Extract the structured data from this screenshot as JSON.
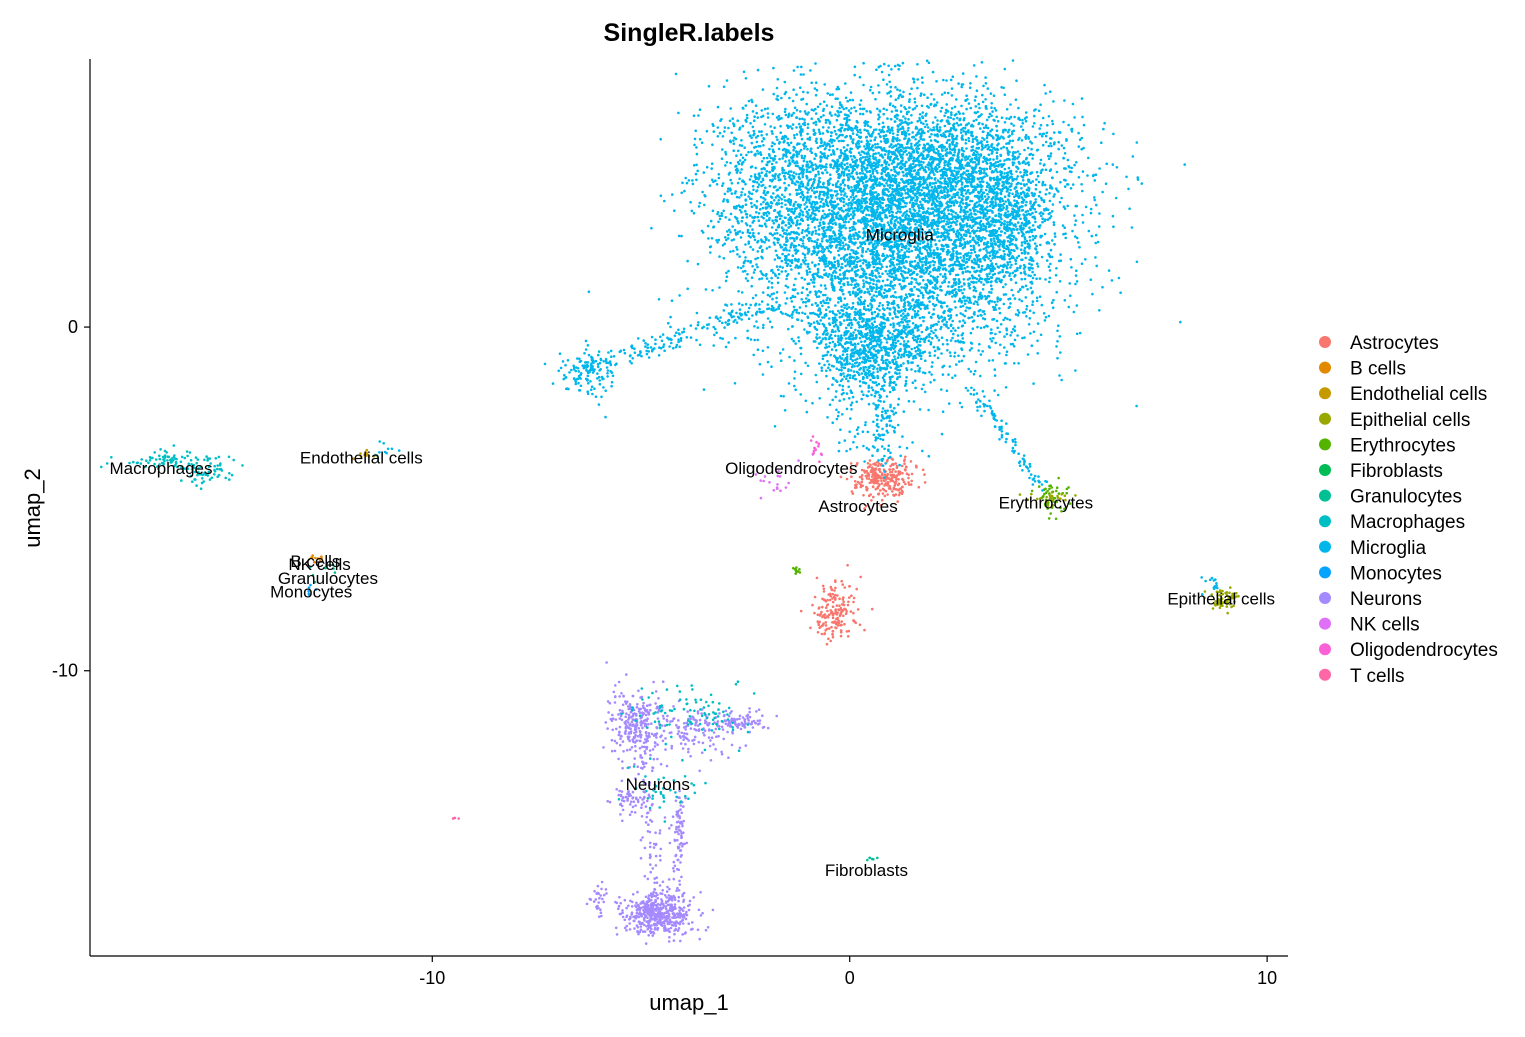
{
  "chart_data": {
    "type": "scatter",
    "title": "SingleR.labels",
    "xlabel": "umap_1",
    "ylabel": "umap_2",
    "xlim": [
      -18.2,
      10.5
    ],
    "ylim": [
      -18.3,
      7.8
    ],
    "x_ticks": [
      -10,
      0,
      10
    ],
    "y_ticks": [
      0,
      -10
    ],
    "grid": false,
    "legend_position": "right",
    "legend": [
      {
        "name": "Astrocytes",
        "color": "#F8766D"
      },
      {
        "name": "B cells",
        "color": "#E38900"
      },
      {
        "name": "Endothelial cells",
        "color": "#C49A00"
      },
      {
        "name": "Epithelial cells",
        "color": "#99A800"
      },
      {
        "name": "Erythrocytes",
        "color": "#53B400"
      },
      {
        "name": "Fibroblasts",
        "color": "#00BC56"
      },
      {
        "name": "Granulocytes",
        "color": "#00C094"
      },
      {
        "name": "Macrophages",
        "color": "#00BFC4"
      },
      {
        "name": "Microglia",
        "color": "#00B6EB"
      },
      {
        "name": "Monocytes",
        "color": "#06A4FF"
      },
      {
        "name": "Neurons",
        "color": "#A58AFF"
      },
      {
        "name": "NK cells",
        "color": "#DF70F8"
      },
      {
        "name": "Oligodendrocytes",
        "color": "#FB61D7"
      },
      {
        "name": "T cells",
        "color": "#FF66A8"
      }
    ],
    "cluster_labels": [
      {
        "text": "Microglia",
        "x": 1.2,
        "y": 2.7
      },
      {
        "text": "Macrophages",
        "x": -16.5,
        "y": -4.1
      },
      {
        "text": "Endothelial cells",
        "x": -11.7,
        "y": -3.8
      },
      {
        "text": "Oligodendrocytes",
        "x": -1.4,
        "y": -4.1
      },
      {
        "text": "Astrocytes",
        "x": 0.2,
        "y": -5.2
      },
      {
        "text": "Erythrocytes",
        "x": 4.7,
        "y": -5.1
      },
      {
        "text": "B cells",
        "x": -12.8,
        "y": -6.8
      },
      {
        "text": "NK cells",
        "x": -12.7,
        "y": -6.9
      },
      {
        "text": "Granulocytes",
        "x": -12.5,
        "y": -7.3
      },
      {
        "text": "Monocytes",
        "x": -12.9,
        "y": -7.7
      },
      {
        "text": "Epithelial cells",
        "x": 8.9,
        "y": -7.9
      },
      {
        "text": "Neurons",
        "x": -4.6,
        "y": -13.3
      },
      {
        "text": "Fibroblasts",
        "x": 0.4,
        "y": -15.8
      }
    ],
    "point_clusters": [
      {
        "label": "Microglia",
        "cx": 1.2,
        "cy": 2.7,
        "sx": 1.8,
        "sy": 1.9,
        "n": 5200
      },
      {
        "label": "Microglia",
        "cx": 2.2,
        "cy": 4.7,
        "sx": 1.6,
        "sy": 1.0,
        "n": 1400
      },
      {
        "label": "Microglia",
        "cx": -1.5,
        "cy": 4.3,
        "sx": 1.1,
        "sy": 1.3,
        "n": 900
      },
      {
        "label": "Microglia",
        "cx": 3.7,
        "cy": 2.8,
        "sx": 0.6,
        "sy": 1.0,
        "n": 500
      },
      {
        "label": "Microglia",
        "cx": 0.5,
        "cy": -0.5,
        "sx": 0.7,
        "sy": 0.6,
        "n": 600
      },
      {
        "label": "Microglia",
        "cx": -6.3,
        "cy": -1.3,
        "sx": 0.35,
        "sy": 0.35,
        "n": 130
      },
      {
        "label": "Macrophages",
        "cx": -16.3,
        "cy": -3.9,
        "sx": 0.6,
        "sy": 0.15,
        "n": 90
      },
      {
        "label": "Macrophages",
        "cx": -15.4,
        "cy": -4.3,
        "sx": 0.25,
        "sy": 0.15,
        "n": 40
      },
      {
        "label": "Endothelial cells",
        "cx": -11.6,
        "cy": -3.7,
        "sx": 0.15,
        "sy": 0.1,
        "n": 12
      },
      {
        "label": "Microglia",
        "cx": -11.2,
        "cy": -3.6,
        "sx": 0.2,
        "sy": 0.15,
        "n": 10
      },
      {
        "label": "Astrocytes",
        "cx": 0.8,
        "cy": -4.4,
        "sx": 0.4,
        "sy": 0.3,
        "n": 260
      },
      {
        "label": "Astrocytes",
        "cx": -0.4,
        "cy": -8.3,
        "sx": 0.25,
        "sy": 0.45,
        "n": 170
      },
      {
        "label": "Oligodendrocytes",
        "cx": -0.8,
        "cy": -3.5,
        "sx": 0.1,
        "sy": 0.2,
        "n": 14
      },
      {
        "label": "NK cells",
        "cx": -1.8,
        "cy": -4.5,
        "sx": 0.25,
        "sy": 0.25,
        "n": 18
      },
      {
        "label": "Erythrocytes",
        "cx": -1.3,
        "cy": -7.1,
        "sx": 0.05,
        "sy": 0.1,
        "n": 12
      },
      {
        "label": "Erythrocytes",
        "cx": 4.8,
        "cy": -4.9,
        "sx": 0.2,
        "sy": 0.25,
        "n": 50
      },
      {
        "label": "Epithelial cells",
        "cx": 4.7,
        "cy": -5.0,
        "sx": 0.3,
        "sy": 0.1,
        "n": 25
      },
      {
        "label": "Epithelial cells",
        "cx": 9.0,
        "cy": -7.9,
        "sx": 0.2,
        "sy": 0.15,
        "n": 70
      },
      {
        "label": "Microglia",
        "cx": 8.6,
        "cy": -7.4,
        "sx": 0.15,
        "sy": 0.15,
        "n": 14
      },
      {
        "label": "B cells",
        "cx": -12.8,
        "cy": -6.8,
        "sx": 0.1,
        "sy": 0.1,
        "n": 10
      },
      {
        "label": "Granulocytes",
        "cx": -12.6,
        "cy": -7.1,
        "sx": 0.15,
        "sy": 0.15,
        "n": 8
      },
      {
        "label": "Monocytes",
        "cx": -12.9,
        "cy": -7.7,
        "sx": 0.08,
        "sy": 0.1,
        "n": 6
      },
      {
        "label": "Neurons",
        "cx": -4.6,
        "cy": -17.1,
        "sx": 0.4,
        "sy": 0.3,
        "n": 460
      },
      {
        "label": "Neurons",
        "cx": -5.1,
        "cy": -11.5,
        "sx": 0.35,
        "sy": 0.5,
        "n": 260
      },
      {
        "label": "Neurons",
        "cx": -3.6,
        "cy": -11.8,
        "sx": 0.5,
        "sy": 0.35,
        "n": 130
      },
      {
        "label": "Neurons",
        "cx": -2.6,
        "cy": -11.5,
        "sx": 0.3,
        "sy": 0.15,
        "n": 80
      },
      {
        "label": "Neurons",
        "cx": -5.3,
        "cy": -13.8,
        "sx": 0.2,
        "sy": 0.25,
        "n": 50
      },
      {
        "label": "Neurons",
        "cx": -6.0,
        "cy": -16.7,
        "sx": 0.15,
        "sy": 0.3,
        "n": 30
      },
      {
        "label": "Neurons",
        "cx": -4.1,
        "cy": -14.6,
        "sx": 0.1,
        "sy": 0.5,
        "n": 45
      },
      {
        "label": "Macrophages",
        "cx": -3.9,
        "cy": -11.2,
        "sx": 0.7,
        "sy": 0.35,
        "n": 90
      },
      {
        "label": "Macrophages",
        "cx": -4.4,
        "cy": -13.5,
        "sx": 0.4,
        "sy": 0.4,
        "n": 40
      },
      {
        "label": "T cells",
        "cx": -9.5,
        "cy": -14.3,
        "sx": 0.05,
        "sy": 0.05,
        "n": 4
      },
      {
        "label": "Granulocytes",
        "cx": 0.5,
        "cy": -15.5,
        "sx": 0.15,
        "sy": 0.05,
        "n": 6
      }
    ],
    "point_streams": [
      {
        "label": "Microglia",
        "from": [
          -6.2,
          -1.2
        ],
        "to": [
          -1.8,
          0.7
        ],
        "spread": 0.15,
        "n": 160
      },
      {
        "label": "Microglia",
        "from": [
          0.6,
          -0.8
        ],
        "to": [
          0.9,
          -4.0
        ],
        "spread": 0.25,
        "n": 170
      },
      {
        "label": "Microglia",
        "from": [
          -0.3,
          -0.2
        ],
        "to": [
          0.0,
          -3.5
        ],
        "spread": 0.2,
        "n": 70
      },
      {
        "label": "Microglia",
        "from": [
          3.0,
          -1.8
        ],
        "to": [
          4.6,
          -4.7
        ],
        "spread": 0.08,
        "n": 90
      },
      {
        "label": "Neurons",
        "from": [
          -5.0,
          -12.2
        ],
        "to": [
          -4.6,
          -16.5
        ],
        "spread": 0.15,
        "n": 90
      },
      {
        "label": "Neurons",
        "from": [
          -4.1,
          -14.0
        ],
        "to": [
          -4.2,
          -16.6
        ],
        "spread": 0.1,
        "n": 40
      }
    ]
  }
}
